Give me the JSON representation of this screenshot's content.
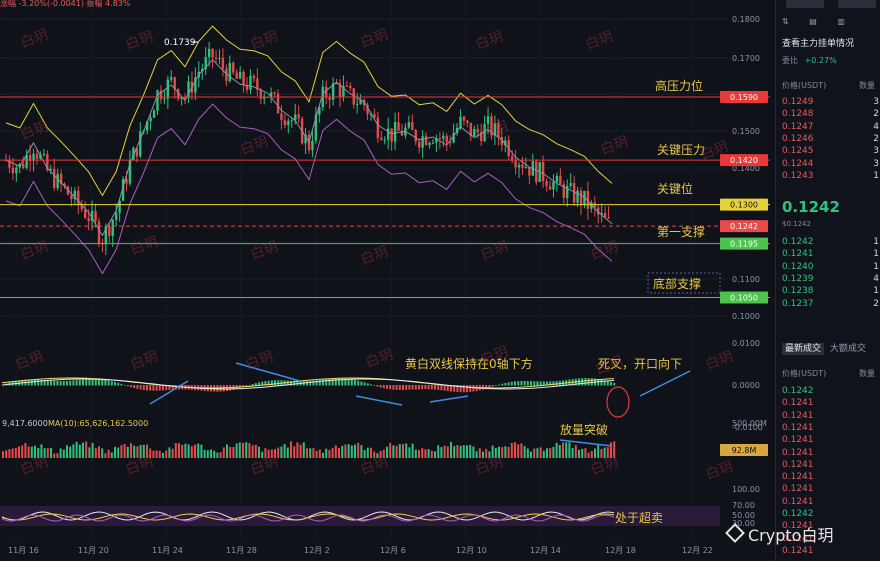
{
  "header": {
    "change_text": "-3.20%(-0.0041)",
    "amplitude_text": "振幅 4.83%",
    "prefix": "涨幅"
  },
  "price_axis": [
    "0.1800",
    "0.1700",
    "0.1600",
    "0.1500",
    "0.1400",
    "0.1300",
    "0.1200",
    "0.1100",
    "0.1000"
  ],
  "macd_axis": [
    "0.0100",
    "0.0000",
    "-0.0100"
  ],
  "vol_axis": [
    "500.00M"
  ],
  "rsi_axis": [
    "100.00",
    "70.00",
    "50.00",
    "30.00"
  ],
  "date_axis": [
    "11月 16",
    "11月 20",
    "11月 24",
    "11月 28",
    "12月 2",
    "12月 6",
    "12月 10",
    "12月 14",
    "12月 18",
    "12月 22"
  ],
  "price_tags": {
    "p1590": "0.1590",
    "p1420": "0.1420",
    "p1300": "0.1300",
    "p1242": "0.1242",
    "p1195": "0.1195",
    "p1050": "0.1050",
    "vol": "92.8M"
  },
  "annotations": {
    "high_label": "0.1739",
    "pressure_high": "高压力位",
    "key_pressure": "关键压力",
    "key_level": "关键位",
    "first_support": "第一支撑",
    "bottom_support": "底部支撑",
    "macd_note": "黄白双线保持在0轴下方",
    "death_cross": "死叉，开口向下",
    "volume_break": "放量突破",
    "oversold": "处于超卖",
    "vol_ma_text": "MA(10):65,626,162.5000",
    "vol_left_text": "9,417.6000"
  },
  "watermark": "白玥",
  "brand": "Crypto白玥",
  "brand_icons": {
    "logo": "diamond-logo-icon"
  },
  "sidebar": {
    "top_buttons": [
      "",
      ""
    ],
    "depth_title": "查看主力挂单情况",
    "ratio_label": "委比",
    "ratio_value": "+0.27%",
    "col_price": "价格(USDT)",
    "col_qty": "数量",
    "asks": [
      [
        "0.1249",
        "3"
      ],
      [
        "0.1248",
        "2"
      ],
      [
        "0.1247",
        "4"
      ],
      [
        "0.1246",
        "2"
      ],
      [
        "0.1245",
        "3"
      ],
      [
        "0.1244",
        "3"
      ],
      [
        "0.1243",
        "1"
      ]
    ],
    "last_price": "0.1242",
    "last_price_sub": "$0.1242",
    "bids": [
      [
        "0.1242",
        "1"
      ],
      [
        "0.1241",
        "1"
      ],
      [
        "0.1240",
        "1"
      ],
      [
        "0.1239",
        "4"
      ],
      [
        "0.1238",
        "1"
      ],
      [
        "0.1237",
        "2"
      ]
    ],
    "trades_title": "最新成交",
    "trades_tab2": "大额成交",
    "trades_col_price": "价格(USDT)",
    "trades_col_qty": "数量",
    "trades": [
      "0.1242",
      "0.1241",
      "0.1241",
      "0.1241",
      "0.1241",
      "0.1241",
      "0.1241",
      "0.1241",
      "0.1241",
      "0.1241",
      "0.1242",
      "0.1241",
      "0.1241",
      "0.1241"
    ]
  },
  "colors": {
    "up": "#2ec27e",
    "down": "#e84a4a",
    "ma_yellow": "#e6d33a",
    "ma_purple": "#b05cc8",
    "ma_gray": "#8a93a8",
    "line_red": "#e83838",
    "line_yellow": "#e6d33a",
    "line_green": "#4cc44c"
  },
  "chart_data": {
    "type": "candlestick",
    "series": [
      {
        "values": [
          0.142,
          0.14,
          0.146,
          0.139,
          0.135,
          0.131,
          0.127,
          0.121,
          0.128,
          0.141,
          0.15,
          0.16,
          0.163,
          0.159,
          0.166,
          0.17,
          0.166,
          0.163,
          0.162,
          0.16,
          0.155,
          0.152,
          0.146,
          0.159,
          0.162,
          0.159,
          0.157,
          0.151,
          0.149,
          0.15,
          0.148,
          0.149,
          0.147,
          0.152,
          0.149,
          0.151,
          0.148,
          0.143,
          0.14,
          0.138,
          0.135,
          0.133,
          0.131,
          0.127,
          0.124
        ]
      }
    ],
    "x_range": [
      "11月 16",
      "12月 18"
    ],
    "ylim": [
      0.095,
      0.182
    ],
    "key_levels": [
      0.159,
      0.142,
      0.13,
      0.1242,
      0.1195,
      0.105
    ],
    "last_price": 0.1242,
    "high": 0.1739
  }
}
